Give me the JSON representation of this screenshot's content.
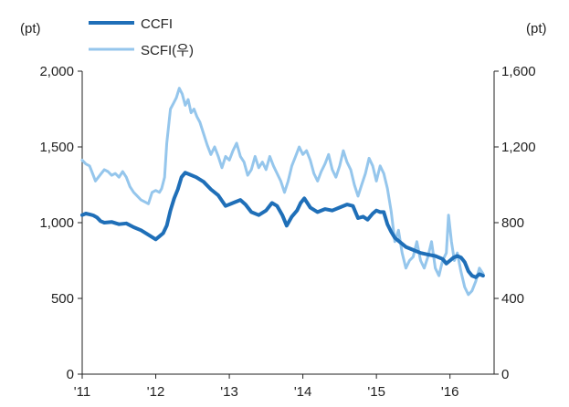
{
  "chart_data": {
    "type": "line",
    "title": "",
    "xlabel": "",
    "left_unit": "(pt)",
    "right_unit": "(pt)",
    "x_ticks": [
      "'11",
      "'12",
      "'13",
      "'14",
      "'15",
      "'16"
    ],
    "left_ticks": [
      "0",
      "500",
      "1,000",
      "1,500",
      "2,000"
    ],
    "right_ticks": [
      "0",
      "400",
      "800",
      "1,200",
      "1,600"
    ],
    "ylim_left": [
      0,
      2000
    ],
    "ylim_right": [
      0,
      1600
    ],
    "xlim": [
      2011.0,
      2016.6
    ],
    "grid": false,
    "legend_position": "top-left",
    "series": [
      {
        "name": "CCFI",
        "axis": "left",
        "color": "#1f6fb8",
        "points": [
          [
            2011.0,
            1050
          ],
          [
            2011.05,
            1060
          ],
          [
            2011.1,
            1055
          ],
          [
            2011.15,
            1048
          ],
          [
            2011.2,
            1035
          ],
          [
            2011.25,
            1010
          ],
          [
            2011.3,
            1000
          ],
          [
            2011.4,
            1005
          ],
          [
            2011.5,
            990
          ],
          [
            2011.6,
            995
          ],
          [
            2011.7,
            970
          ],
          [
            2011.8,
            950
          ],
          [
            2011.9,
            920
          ],
          [
            2012.0,
            890
          ],
          [
            2012.05,
            910
          ],
          [
            2012.1,
            930
          ],
          [
            2012.15,
            980
          ],
          [
            2012.2,
            1080
          ],
          [
            2012.25,
            1160
          ],
          [
            2012.3,
            1220
          ],
          [
            2012.35,
            1300
          ],
          [
            2012.4,
            1330
          ],
          [
            2012.45,
            1320
          ],
          [
            2012.55,
            1300
          ],
          [
            2012.65,
            1270
          ],
          [
            2012.75,
            1220
          ],
          [
            2012.85,
            1180
          ],
          [
            2012.95,
            1110
          ],
          [
            2013.05,
            1130
          ],
          [
            2013.15,
            1150
          ],
          [
            2013.22,
            1120
          ],
          [
            2013.3,
            1070
          ],
          [
            2013.4,
            1050
          ],
          [
            2013.5,
            1080
          ],
          [
            2013.58,
            1130
          ],
          [
            2013.65,
            1110
          ],
          [
            2013.72,
            1050
          ],
          [
            2013.78,
            980
          ],
          [
            2013.85,
            1040
          ],
          [
            2013.92,
            1080
          ],
          [
            2013.97,
            1130
          ],
          [
            2014.02,
            1160
          ],
          [
            2014.1,
            1100
          ],
          [
            2014.2,
            1070
          ],
          [
            2014.3,
            1090
          ],
          [
            2014.4,
            1080
          ],
          [
            2014.5,
            1100
          ],
          [
            2014.6,
            1120
          ],
          [
            2014.68,
            1110
          ],
          [
            2014.75,
            1030
          ],
          [
            2014.82,
            1040
          ],
          [
            2014.88,
            1020
          ],
          [
            2014.95,
            1060
          ],
          [
            2015.0,
            1080
          ],
          [
            2015.05,
            1070
          ],
          [
            2015.1,
            1070
          ],
          [
            2015.15,
            990
          ],
          [
            2015.2,
            940
          ],
          [
            2015.25,
            900
          ],
          [
            2015.3,
            880
          ],
          [
            2015.4,
            840
          ],
          [
            2015.5,
            820
          ],
          [
            2015.6,
            800
          ],
          [
            2015.7,
            790
          ],
          [
            2015.8,
            780
          ],
          [
            2015.9,
            760
          ],
          [
            2015.95,
            730
          ],
          [
            2016.0,
            750
          ],
          [
            2016.05,
            770
          ],
          [
            2016.1,
            780
          ],
          [
            2016.15,
            770
          ],
          [
            2016.2,
            740
          ],
          [
            2016.25,
            680
          ],
          [
            2016.3,
            650
          ],
          [
            2016.35,
            640
          ],
          [
            2016.4,
            660
          ],
          [
            2016.45,
            650
          ]
        ]
      },
      {
        "name": "SCFI(우)",
        "axis": "right",
        "color": "#95c6ec",
        "points": [
          [
            2011.0,
            1130
          ],
          [
            2011.05,
            1110
          ],
          [
            2011.1,
            1100
          ],
          [
            2011.15,
            1050
          ],
          [
            2011.18,
            1020
          ],
          [
            2011.22,
            1040
          ],
          [
            2011.26,
            1060
          ],
          [
            2011.3,
            1080
          ],
          [
            2011.35,
            1070
          ],
          [
            2011.4,
            1050
          ],
          [
            2011.45,
            1060
          ],
          [
            2011.5,
            1040
          ],
          [
            2011.55,
            1070
          ],
          [
            2011.6,
            1040
          ],
          [
            2011.65,
            990
          ],
          [
            2011.7,
            960
          ],
          [
            2011.75,
            940
          ],
          [
            2011.8,
            920
          ],
          [
            2011.85,
            910
          ],
          [
            2011.9,
            900
          ],
          [
            2011.95,
            960
          ],
          [
            2012.0,
            970
          ],
          [
            2012.05,
            960
          ],
          [
            2012.08,
            980
          ],
          [
            2012.12,
            1040
          ],
          [
            2012.15,
            1220
          ],
          [
            2012.2,
            1400
          ],
          [
            2012.24,
            1430
          ],
          [
            2012.28,
            1460
          ],
          [
            2012.32,
            1510
          ],
          [
            2012.36,
            1480
          ],
          [
            2012.4,
            1420
          ],
          [
            2012.44,
            1450
          ],
          [
            2012.48,
            1380
          ],
          [
            2012.52,
            1400
          ],
          [
            2012.56,
            1360
          ],
          [
            2012.6,
            1330
          ],
          [
            2012.65,
            1270
          ],
          [
            2012.7,
            1210
          ],
          [
            2012.75,
            1160
          ],
          [
            2012.8,
            1200
          ],
          [
            2012.85,
            1150
          ],
          [
            2012.9,
            1090
          ],
          [
            2012.95,
            1150
          ],
          [
            2013.0,
            1130
          ],
          [
            2013.05,
            1180
          ],
          [
            2013.1,
            1220
          ],
          [
            2013.15,
            1150
          ],
          [
            2013.2,
            1120
          ],
          [
            2013.25,
            1050
          ],
          [
            2013.3,
            1080
          ],
          [
            2013.35,
            1150
          ],
          [
            2013.4,
            1090
          ],
          [
            2013.45,
            1120
          ],
          [
            2013.5,
            1080
          ],
          [
            2013.55,
            1150
          ],
          [
            2013.6,
            1100
          ],
          [
            2013.65,
            1060
          ],
          [
            2013.7,
            1020
          ],
          [
            2013.75,
            960
          ],
          [
            2013.8,
            1020
          ],
          [
            2013.85,
            1100
          ],
          [
            2013.9,
            1150
          ],
          [
            2013.95,
            1200
          ],
          [
            2014.0,
            1160
          ],
          [
            2014.05,
            1180
          ],
          [
            2014.1,
            1130
          ],
          [
            2014.15,
            1060
          ],
          [
            2014.2,
            1020
          ],
          [
            2014.25,
            1070
          ],
          [
            2014.3,
            1110
          ],
          [
            2014.35,
            1160
          ],
          [
            2014.4,
            1080
          ],
          [
            2014.45,
            1040
          ],
          [
            2014.5,
            1100
          ],
          [
            2014.55,
            1180
          ],
          [
            2014.6,
            1120
          ],
          [
            2014.65,
            1080
          ],
          [
            2014.7,
            1000
          ],
          [
            2014.75,
            940
          ],
          [
            2014.8,
            1000
          ],
          [
            2014.85,
            1060
          ],
          [
            2014.9,
            1140
          ],
          [
            2014.95,
            1100
          ],
          [
            2015.0,
            1020
          ],
          [
            2015.05,
            1100
          ],
          [
            2015.1,
            1060
          ],
          [
            2015.15,
            980
          ],
          [
            2015.2,
            860
          ],
          [
            2015.25,
            700
          ],
          [
            2015.3,
            760
          ],
          [
            2015.35,
            640
          ],
          [
            2015.4,
            560
          ],
          [
            2015.45,
            600
          ],
          [
            2015.5,
            620
          ],
          [
            2015.55,
            700
          ],
          [
            2015.6,
            600
          ],
          [
            2015.65,
            560
          ],
          [
            2015.7,
            620
          ],
          [
            2015.75,
            700
          ],
          [
            2015.8,
            560
          ],
          [
            2015.85,
            520
          ],
          [
            2015.9,
            600
          ],
          [
            2015.95,
            640
          ],
          [
            2015.98,
            840
          ],
          [
            2016.02,
            700
          ],
          [
            2016.06,
            600
          ],
          [
            2016.1,
            640
          ],
          [
            2016.15,
            540
          ],
          [
            2016.2,
            460
          ],
          [
            2016.25,
            420
          ],
          [
            2016.3,
            440
          ],
          [
            2016.35,
            490
          ],
          [
            2016.4,
            560
          ],
          [
            2016.45,
            530
          ]
        ]
      }
    ]
  }
}
